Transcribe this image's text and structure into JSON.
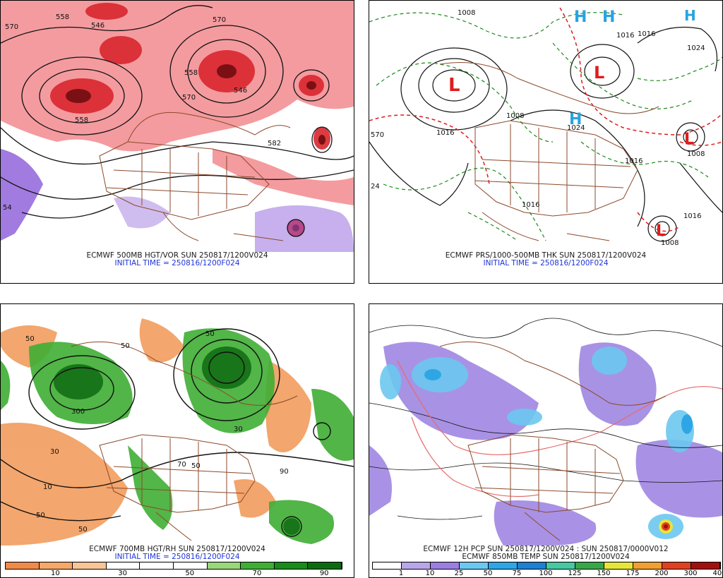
{
  "panels": {
    "p1": {
      "caption": "ECMWF 500MB HGT/VOR SUN 250817/1200V024",
      "init": "INITIAL TIME = 250816/1200F024",
      "contour_labels": [
        "558",
        "546",
        "570",
        "558",
        "570",
        "558",
        "546",
        "582",
        "570",
        "54"
      ]
    },
    "p2": {
      "caption": "ECMWF PRS/1000-500MB THK SUN 250817/1200V024",
      "init": "INITIAL TIME = 250816/1200F024",
      "isobar_labels": [
        "1008",
        "1016",
        "1016",
        "1024",
        "1008",
        "1024",
        "1016",
        "1016",
        "1008",
        "1016",
        "1016",
        "1008",
        "570",
        "24"
      ],
      "high_letter": "H",
      "low_letter": "L"
    },
    "p3": {
      "caption": "ECMWF 700MB HGT/RH SUN 250817/1200V024",
      "init": "INITIAL TIME = 250816/1200F024",
      "colorbar_ticks": [
        "10",
        "30",
        "50",
        "70",
        "90"
      ],
      "colorbar_colors": [
        "#f08a4a",
        "#f5a868",
        "#f7c596",
        "#ffffff",
        "#ffffff",
        "#ffffff",
        "#9ad67a",
        "#3fae34",
        "#1a8a1a",
        "#0e6a12"
      ],
      "contour_labels": [
        "50",
        "50",
        "300",
        "30",
        "30",
        "10",
        "50",
        "50",
        "70",
        "90",
        "50",
        "50"
      ]
    },
    "p4": {
      "caption": "ECMWF 12H PCP SUN 250817/1200V024 : SUN 250817/0000V012",
      "caption2": "ECMWF 850MB TEMP SUN 250817/1200V024",
      "colorbar_ticks": [
        "1",
        "10",
        "25",
        "50",
        "75",
        "100",
        "125",
        "150",
        "175",
        "200",
        "300",
        "400"
      ],
      "colorbar_colors": [
        "#ffffff",
        "#b9a6e8",
        "#9a7fe0",
        "#6cc8f0",
        "#2ea6e6",
        "#1f7fd0",
        "#46c8a0",
        "#3aa64a",
        "#e6e63a",
        "#f0a030",
        "#e04020",
        "#a01010"
      ]
    }
  },
  "colors": {
    "vorticity": "#d9262e",
    "vorticity_light": "#f28a8e",
    "negative_vort": "#8a5ad8",
    "borders": "#8b4a2b",
    "thickness": "#1a8a1a",
    "thickness_warm": "#e01c1c",
    "high": "#29a3e0",
    "low": "#e01c1c",
    "caption_init": "#1f34d6"
  }
}
